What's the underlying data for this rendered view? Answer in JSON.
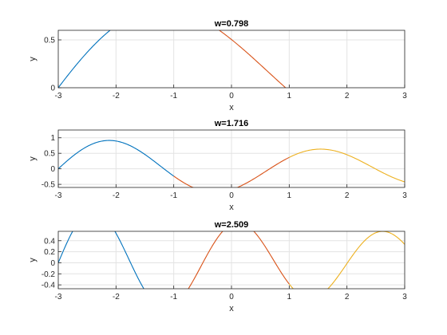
{
  "chart_data": [
    {
      "type": "line",
      "title": "w=0.798",
      "xlabel": "x",
      "ylabel": "y",
      "xlim": [
        -3,
        3
      ],
      "ylim": [
        0,
        0.6
      ],
      "xticks": [
        -3,
        -2,
        -1,
        0,
        1,
        2,
        3
      ],
      "xtick_labels": [
        "-3",
        "-2",
        "-1",
        "0",
        "1",
        "2",
        "3"
      ],
      "yticks": [
        0,
        0.5
      ],
      "ytick_labels": [
        "0",
        "0.5"
      ],
      "grid": true,
      "w": 0.798,
      "segments": [
        {
          "x_range": [
            -3,
            -1
          ],
          "color": "#0072BD"
        },
        {
          "x_range": [
            -1,
            1
          ],
          "color": "#D95319"
        },
        {
          "x_range": [
            1,
            3
          ],
          "color": "#EDB120"
        }
      ]
    },
    {
      "type": "line",
      "title": "w=1.716",
      "xlabel": "x",
      "ylabel": "y",
      "xlim": [
        -3,
        3
      ],
      "ylim": [
        -0.6,
        1.25
      ],
      "xticks": [
        -3,
        -2,
        -1,
        0,
        1,
        2,
        3
      ],
      "xtick_labels": [
        "-3",
        "-2",
        "-1",
        "0",
        "1",
        "2",
        "3"
      ],
      "yticks": [
        -0.5,
        0,
        0.5,
        1
      ],
      "ytick_labels": [
        "-0.5",
        "0",
        "0.5",
        "1"
      ],
      "grid": true,
      "w": 1.716,
      "segments": [
        {
          "x_range": [
            -3,
            -1
          ],
          "color": "#0072BD"
        },
        {
          "x_range": [
            -1,
            1
          ],
          "color": "#D95319"
        },
        {
          "x_range": [
            1,
            3
          ],
          "color": "#EDB120"
        }
      ]
    },
    {
      "type": "line",
      "title": "w=2.509",
      "xlabel": "x",
      "ylabel": "y",
      "xlim": [
        -3,
        3
      ],
      "ylim": [
        -0.47,
        0.57
      ],
      "xticks": [
        -3,
        -2,
        -1,
        0,
        1,
        2,
        3
      ],
      "xtick_labels": [
        "-3",
        "-2",
        "-1",
        "0",
        "1",
        "2",
        "3"
      ],
      "yticks": [
        -0.4,
        -0.2,
        0,
        0.2,
        0.4
      ],
      "ytick_labels": [
        "-0.4",
        "-0.2",
        "0",
        "0.2",
        "0.4"
      ],
      "grid": true,
      "w": 2.509,
      "segments": [
        {
          "x_range": [
            -3,
            -1
          ],
          "color": "#0072BD"
        },
        {
          "x_range": [
            -1,
            1
          ],
          "color": "#D95319"
        },
        {
          "x_range": [
            1,
            3
          ],
          "color": "#EDB120"
        }
      ]
    }
  ]
}
